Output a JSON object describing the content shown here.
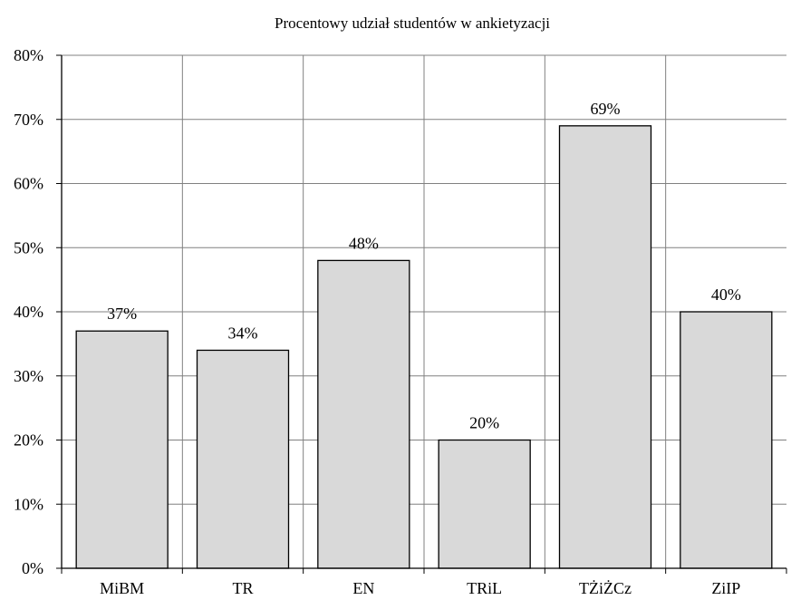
{
  "chart_data": {
    "type": "bar",
    "title": "Procentowy udział studentów w ankietyzacji",
    "xlabel": "",
    "ylabel": "",
    "categories": [
      "MiBM",
      "TR",
      "EN",
      "TRiL",
      "TŻiŻCz",
      "ZiIP"
    ],
    "series": [
      {
        "values": [
          37,
          34,
          48,
          20,
          69,
          40
        ]
      }
    ],
    "data_labels": [
      "37%",
      "34%",
      "48%",
      "20%",
      "69%",
      "40%"
    ],
    "y_ticks": [
      "0%",
      "10%",
      "20%",
      "30%",
      "40%",
      "50%",
      "60%",
      "70%",
      "80%"
    ],
    "y_tick_values": [
      0,
      10,
      20,
      30,
      40,
      50,
      60,
      70,
      80
    ],
    "ylim": [
      0,
      80
    ],
    "grid": true,
    "legend": "none",
    "colors": {
      "bar_fill": "#d9d9d9",
      "bar_stroke": "#000000",
      "grid": "#808080",
      "axis": "#000000"
    }
  }
}
